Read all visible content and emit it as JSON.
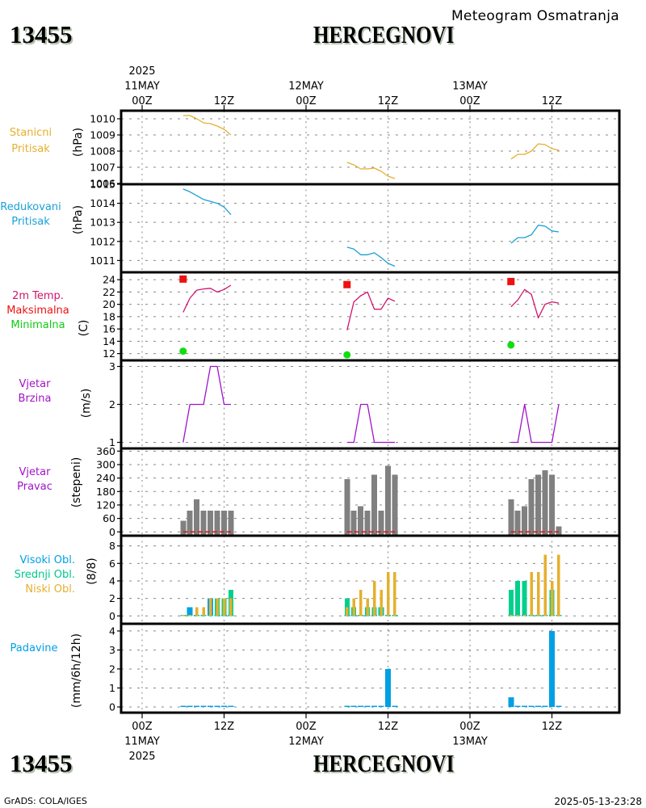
{
  "header": {
    "station_id": "13455",
    "station_name": "HERCEGNOVI",
    "product_title": "Meteogram Osmatranja"
  },
  "footer": {
    "station_id": "13455",
    "station_name": "HERCEGNOVI",
    "credit": "GrADS: COLA/IGES",
    "timestamp": "2025-05-13-23:28"
  },
  "time_axis": {
    "reference": "2025-05-11 00Z",
    "unit": "hours",
    "range_hours": [
      -3,
      70
    ],
    "observation_hours": [
      6,
      7,
      8,
      9,
      10,
      11,
      12,
      13,
      30,
      31,
      32,
      33,
      34,
      35,
      36,
      37,
      54,
      55,
      56,
      57,
      58,
      59,
      60,
      61
    ],
    "top_ticks": [
      {
        "hour": 0,
        "labels": [
          "2025",
          "11MAY",
          "00Z"
        ]
      },
      {
        "hour": 12,
        "labels": [
          "12Z"
        ]
      },
      {
        "hour": 24,
        "labels": [
          "12MAY",
          "00Z"
        ]
      },
      {
        "hour": 36,
        "labels": [
          "12Z"
        ]
      },
      {
        "hour": 48,
        "labels": [
          "13MAY",
          "00Z"
        ]
      },
      {
        "hour": 60,
        "labels": [
          "12Z"
        ]
      }
    ],
    "bottom_ticks": [
      {
        "hour": 0,
        "labels": [
          "00Z",
          "11MAY",
          "2025"
        ]
      },
      {
        "hour": 12,
        "labels": [
          "12Z"
        ]
      },
      {
        "hour": 24,
        "labels": [
          "00Z",
          "12MAY"
        ]
      },
      {
        "hour": 36,
        "labels": [
          "12Z"
        ]
      },
      {
        "hour": 48,
        "labels": [
          "00Z",
          "13MAY"
        ]
      },
      {
        "hour": 60,
        "labels": [
          "12Z"
        ]
      }
    ]
  },
  "chart_data": [
    {
      "id": "station-pressure",
      "type": "line",
      "title": [
        {
          "text": "Stanicni",
          "color": "#e6af2d"
        },
        {
          "text": "Pritisak",
          "color": "#e6af2d"
        }
      ],
      "ylabel": "(hPa)",
      "ylim": [
        1005.95,
        1010.5
      ],
      "yticks": [
        1006,
        1007,
        1008,
        1009,
        1010
      ],
      "grid": true,
      "series": [
        {
          "id": "station-pressure",
          "name": "Stanicni Pritisak",
          "type": "line",
          "color": "#e6af2d",
          "values": [
            1010.2,
            1010.2,
            1010.0,
            1009.75,
            1009.7,
            1009.55,
            1009.35,
            1009.0,
            1007.3,
            1007.15,
            1006.9,
            1006.9,
            1006.95,
            1006.75,
            1006.45,
            1006.3,
            1007.5,
            1007.8,
            1007.8,
            1008.0,
            1008.45,
            1008.4,
            1008.15,
            1008.05
          ]
        }
      ]
    },
    {
      "id": "reduced-pressure",
      "type": "line",
      "title": [
        {
          "text": "Redukovani",
          "color": "#1aa0d6"
        },
        {
          "text": "Pritisak",
          "color": "#1aa0d6"
        }
      ],
      "ylabel": "(hPa)",
      "ylim": [
        1010.38,
        1015
      ],
      "yticks": [
        1011,
        1012,
        1013,
        1014,
        1015
      ],
      "grid": true,
      "series": [
        {
          "id": "reduced-pressure",
          "name": "Redukovani Pritisak",
          "type": "line",
          "color": "#1aa0d6",
          "values": [
            1014.75,
            1014.6,
            1014.4,
            1014.2,
            1014.1,
            1014.0,
            1013.8,
            1013.4,
            1011.7,
            1011.6,
            1011.3,
            1011.3,
            1011.4,
            1011.15,
            1010.85,
            1010.7,
            1011.9,
            1012.2,
            1012.2,
            1012.35,
            1012.85,
            1012.8,
            1012.55,
            1012.5
          ]
        }
      ]
    },
    {
      "id": "temperature",
      "type": "line",
      "title": [
        {
          "text": "2m Temp.",
          "color": "#d0146e"
        },
        {
          "text": "Maksimalna",
          "color": "#ee1111"
        },
        {
          "text": "Minimalna",
          "color": "#11cc11"
        }
      ],
      "ylabel": "(C)",
      "ylim": [
        10.9,
        25.2
      ],
      "yticks": [
        12,
        14,
        16,
        18,
        20,
        22,
        24
      ],
      "grid": true,
      "series": [
        {
          "id": "temp-2m",
          "name": "2m Temp.",
          "type": "line",
          "color": "#d0146e",
          "values": [
            18.7,
            21.0,
            22.3,
            22.5,
            22.6,
            22.0,
            22.4,
            23.1,
            15.8,
            20.4,
            21.4,
            22.0,
            19.2,
            19.2,
            21.0,
            20.5,
            19.6,
            20.7,
            22.4,
            21.6,
            17.8,
            20.0,
            20.4,
            20.2
          ]
        },
        {
          "id": "temp-max",
          "name": "Maksimalna",
          "type": "marker",
          "shape": "square",
          "color": "#ee1111",
          "points": [
            {
              "hour": 6,
              "value": 24.1
            },
            {
              "hour": 30,
              "value": 23.2
            },
            {
              "hour": 54,
              "value": 23.7
            }
          ]
        },
        {
          "id": "temp-min",
          "name": "Minimalna",
          "type": "marker",
          "shape": "circle",
          "color": "#11dd11",
          "points": [
            {
              "hour": 6,
              "value": 12.4
            },
            {
              "hour": 30,
              "value": 11.8
            },
            {
              "hour": 54,
              "value": 13.4
            }
          ]
        }
      ]
    },
    {
      "id": "wind-speed",
      "type": "line",
      "title": [
        {
          "text": "Vjetar",
          "color": "#a014c8"
        },
        {
          "text": "Brzina",
          "color": "#a014c8"
        }
      ],
      "ylabel": "(m/s)",
      "ylim": [
        0.84,
        3.16
      ],
      "yticks": [
        1,
        2,
        3
      ],
      "grid": true,
      "series": [
        {
          "id": "wind-speed",
          "name": "Vjetar Brzina",
          "type": "line",
          "color": "#a014c8",
          "values": [
            1,
            2,
            2,
            2,
            3,
            3,
            2,
            2,
            1,
            1,
            2,
            2,
            1,
            1,
            1,
            1,
            1,
            1,
            2,
            1,
            1,
            1,
            1,
            2
          ]
        }
      ]
    },
    {
      "id": "wind-direction",
      "type": "bar",
      "title": [
        {
          "text": "Vjetar",
          "color": "#a014c8"
        },
        {
          "text": "Pravac",
          "color": "#a014c8"
        }
      ],
      "ylabel": "(stepeni)",
      "ylim": [
        -17,
        372
      ],
      "yticks": [
        0,
        60,
        120,
        180,
        240,
        300,
        360
      ],
      "grid": true,
      "series": [
        {
          "id": "wind-direction",
          "name": "Vjetar Pravac",
          "type": "bar",
          "base": "axis-min",
          "color": "#808080",
          "values": [
            50,
            95,
            145,
            95,
            95,
            95,
            95,
            95,
            235,
            95,
            115,
            95,
            255,
            95,
            295,
            255,
            145,
            95,
            115,
            235,
            255,
            275,
            255,
            25
          ]
        },
        {
          "id": "wind-direction-zero",
          "name": "zero reference",
          "type": "reference",
          "value": 0,
          "color": "#e01010"
        }
      ]
    },
    {
      "id": "cloud-cover",
      "type": "bar",
      "title": [
        {
          "text": "Visoki Obl.",
          "color": "#00a0e6"
        },
        {
          "text": "Srednji Obl.",
          "color": "#00c88a"
        },
        {
          "text": "Niski Obl.",
          "color": "#e6af2d"
        }
      ],
      "ylabel": "(8/8)",
      "ylim": [
        -0.9,
        9.17
      ],
      "yticks": [
        0,
        2,
        4,
        6,
        8
      ],
      "grid": true,
      "series": [
        {
          "id": "cloud-high",
          "name": "Visoki Obl.",
          "type": "bar",
          "base": "zero",
          "color": "#00a0e6",
          "values": [
            0,
            1,
            0,
            0,
            2,
            0,
            0,
            0,
            0,
            0,
            0,
            0,
            0,
            1,
            0,
            0,
            0,
            0,
            0,
            0,
            0,
            0,
            0,
            0
          ]
        },
        {
          "id": "cloud-mid",
          "name": "Srednji Obl.",
          "type": "bar",
          "base": "zero",
          "color": "#00d08c",
          "values": [
            0,
            0,
            0,
            0,
            0,
            2,
            2,
            3,
            2,
            1,
            0,
            1,
            1,
            1,
            0,
            0,
            3,
            4,
            4,
            0,
            0,
            0,
            3,
            0
          ]
        },
        {
          "id": "cloud-low",
          "name": "Niski Obl.",
          "type": "bar",
          "base": "zero",
          "color": "#e6af2d",
          "values": [
            0,
            0,
            1,
            1,
            2,
            2,
            2,
            2,
            1,
            2,
            3,
            2,
            4,
            3,
            5,
            5,
            0,
            0,
            0,
            5,
            5,
            7,
            4,
            7
          ]
        }
      ]
    },
    {
      "id": "precipitation",
      "type": "bar",
      "title": [
        {
          "text": "Padavine",
          "color": "#00a0e6"
        }
      ],
      "ylabel": "(mm/6h/12h)",
      "ylim": [
        -0.3,
        4.38
      ],
      "yticks": [
        0,
        1,
        2,
        3,
        4
      ],
      "grid": true,
      "series": [
        {
          "id": "precipitation",
          "name": "Padavine",
          "type": "bar",
          "base": "zero",
          "color": "#00a0e6",
          "values": [
            0,
            0,
            0,
            0,
            0,
            0,
            0,
            0,
            0,
            0,
            0,
            0,
            0,
            0,
            2,
            0,
            0.5,
            0,
            0,
            0,
            0,
            0,
            4,
            0
          ]
        }
      ]
    }
  ]
}
